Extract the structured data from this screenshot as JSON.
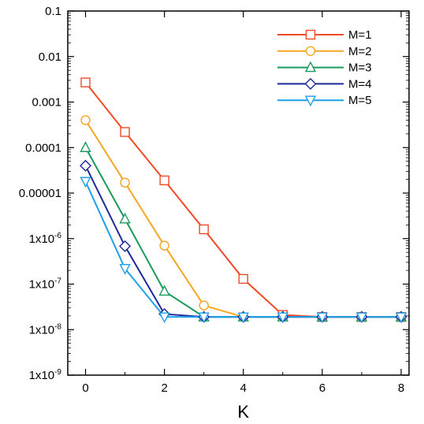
{
  "chart_data": {
    "type": "line",
    "title": "",
    "xlabel": "K",
    "ylabel": "",
    "x_scale": "linear",
    "y_scale": "log",
    "xlim": [
      -0.45,
      8.2
    ],
    "ylim": [
      1e-09,
      0.1
    ],
    "x_ticks": [
      0,
      2,
      4,
      6,
      8
    ],
    "y_ticks": [
      {
        "value": 0.1,
        "label": "0.1"
      },
      {
        "value": 0.01,
        "label": "0.01"
      },
      {
        "value": 0.001,
        "label": "0.001"
      },
      {
        "value": 0.0001,
        "label": "0.0001"
      },
      {
        "value": 1e-05,
        "label": "0.00001"
      },
      {
        "value": 1e-06,
        "label": "1x10",
        "exp": "-6"
      },
      {
        "value": 1e-07,
        "label": "1x10",
        "exp": "-7"
      },
      {
        "value": 1e-08,
        "label": "1x10",
        "exp": "-8"
      },
      {
        "value": 1e-09,
        "label": "1x10",
        "exp": "-9"
      }
    ],
    "grid": false,
    "legend_position": "top-right",
    "x": [
      0,
      1,
      2,
      3,
      4,
      5,
      6,
      7,
      8
    ],
    "series": [
      {
        "name": "M=1",
        "color": "#f04a26",
        "marker": "square",
        "values": [
          0.0027,
          0.00022,
          1.9e-05,
          1.6e-06,
          1.3e-07,
          2.1e-08,
          1.9e-08,
          1.9e-08,
          1.9e-08
        ]
      },
      {
        "name": "M=2",
        "color": "#f5a623",
        "marker": "circle",
        "values": [
          0.0004,
          1.7e-05,
          7e-07,
          3.4e-08,
          1.9e-08,
          1.9e-08,
          1.9e-08,
          1.9e-08,
          1.9e-08
        ]
      },
      {
        "name": "M=3",
        "color": "#1a9a5a",
        "marker": "triangle-up",
        "values": [
          0.0001,
          2.7e-06,
          7e-08,
          1.9e-08,
          1.9e-08,
          1.9e-08,
          1.9e-08,
          1.9e-08,
          1.9e-08
        ]
      },
      {
        "name": "M=4",
        "color": "#1c2a9c",
        "marker": "diamond",
        "values": [
          4e-05,
          6.8e-07,
          2.2e-08,
          1.9e-08,
          1.9e-08,
          1.9e-08,
          1.9e-08,
          1.9e-08,
          1.9e-08
        ]
      },
      {
        "name": "M=5",
        "color": "#1ea0ea",
        "marker": "triangle-down",
        "values": [
          1.8e-05,
          2.2e-07,
          1.9e-08,
          1.9e-08,
          1.9e-08,
          1.9e-08,
          1.9e-08,
          1.9e-08,
          1.9e-08
        ]
      }
    ]
  }
}
